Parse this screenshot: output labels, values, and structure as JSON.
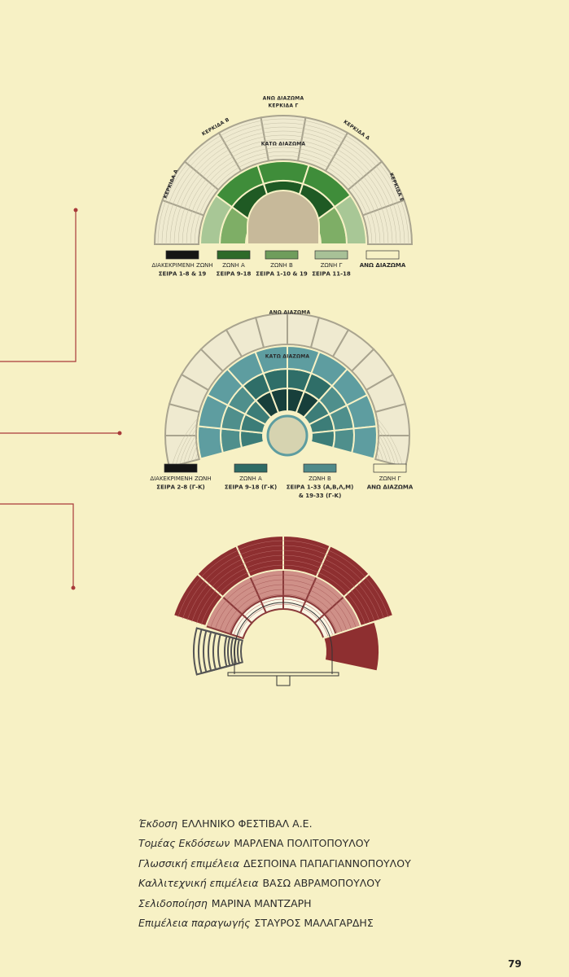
{
  "diagrams": [
    {
      "labels": [
        "ΑΝΩ ΔΙΑΖΩΜΑ",
        "ΚΕΡΚΙΔΑ Γ",
        "ΚΕΡΚΙΔΑ Β",
        "ΚΕΡΚΙΔΑ Δ",
        "ΚΕΡΚΙΔΑ Α",
        "ΚΕΡΚΙΔΑ Ε",
        "ΚΑΤΩ ΔΙΑΖΩΜΑ"
      ],
      "legend": [
        [
          "ΔΙΑΚΕΚΡΙΜΕΝΗ ΖΩΝΗ",
          "ΣΕΙΡΑ 1-8 & 19"
        ],
        [
          "ΖΩΝΗ Α",
          "ΣΕΙΡΑ 9-18"
        ],
        [
          "ΖΩΝΗ Β",
          "ΣΕΙΡΑ 1-10 & 19"
        ],
        [
          "ΖΩΝΗ Γ",
          "ΣΕΙΡΑ 11-18"
        ],
        [
          "ΑΝΩ ΔΙΑΖΩΜΑ"
        ]
      ]
    },
    {
      "labels": [
        "ΑΝΩ ΔΙΑΖΩΜΑ",
        "ΚΑΤΩ ΔΙΑΖΩΜΑ"
      ],
      "legend": [
        [
          "ΔΙΑΚΕΚΡΙΜΕΝΗ ΖΩΝΗ",
          "ΣΕΙΡΑ 2-8 (Γ-Κ)"
        ],
        [
          "ΖΩΝΗ Α",
          "ΣΕΙΡΑ 9-18 (Γ-Κ)"
        ],
        [
          "ΖΩΝΗ Β",
          "ΣΕΙΡΑ 1-33 (Α,Β,Λ,Μ)",
          "& 19-33 (Γ-Κ)"
        ],
        [
          "ΖΩΝΗ Γ",
          "ΑΝΩ ΔΙΑΖΩΜΑ"
        ]
      ]
    }
  ],
  "credits": [
    {
      "role": "Έκδοση",
      "name": "ΕΛΛΗΝΙΚΟ ΦΕΣΤΙΒΑΛ Α.Ε."
    },
    {
      "role": "Τομέας Εκδόσεων",
      "name": "ΜΑΡΛΕΝΑ ΠΟΛΙΤΟΠΟΥΛΟΥ"
    },
    {
      "role": "Γλωσσική επιμέλεια",
      "name": "ΔΕΣΠΟΙΝΑ ΠΑΠΑΓΙΑΝΝΟΠΟΥΛΟΥ"
    },
    {
      "role": "Καλλιτεχνική επιμέλεια",
      "name": "ΒΑΣΩ ΑΒΡΑΜΟΠΟΥΛΟΥ"
    },
    {
      "role": "Σελιδοποίηση",
      "name": "ΜΑΡΙΝΑ ΜΑΝΤΖΑΡΗ"
    },
    {
      "role": "Επιμέλεια παραγωγής",
      "name": "ΣΤΑΥΡΟΣ ΜΑΛΑΓΑΡΔΗΣ"
    }
  ],
  "page_number": "79"
}
